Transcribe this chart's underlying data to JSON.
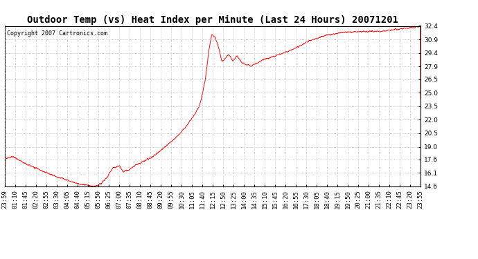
{
  "title": "Outdoor Temp (vs) Heat Index per Minute (Last 24 Hours) 20071201",
  "copyright_text": "Copyright 2007 Cartronics.com",
  "line_color": "#ff0000",
  "background_color": "#ffffff",
  "grid_color": "#aaaaaa",
  "border_color": "#000000",
  "yticks": [
    14.6,
    16.1,
    17.6,
    19.0,
    20.5,
    22.0,
    23.5,
    25.0,
    26.5,
    27.9,
    29.4,
    30.9,
    32.4
  ],
  "ylim": [
    14.6,
    32.4
  ],
  "xtick_labels": [
    "23:59",
    "01:10",
    "01:45",
    "02:20",
    "02:55",
    "03:30",
    "04:05",
    "04:40",
    "05:15",
    "05:50",
    "06:25",
    "07:00",
    "07:35",
    "08:10",
    "08:45",
    "09:20",
    "09:55",
    "10:30",
    "11:05",
    "11:40",
    "12:15",
    "12:50",
    "13:25",
    "14:00",
    "14:35",
    "15:10",
    "15:45",
    "16:20",
    "16:55",
    "17:30",
    "18:05",
    "18:40",
    "19:15",
    "19:50",
    "20:25",
    "21:00",
    "21:35",
    "22:10",
    "22:45",
    "23:20",
    "23:55"
  ],
  "n_points": 1441,
  "title_fontsize": 10,
  "tick_fontsize": 6.5,
  "copyright_fontsize": 6
}
